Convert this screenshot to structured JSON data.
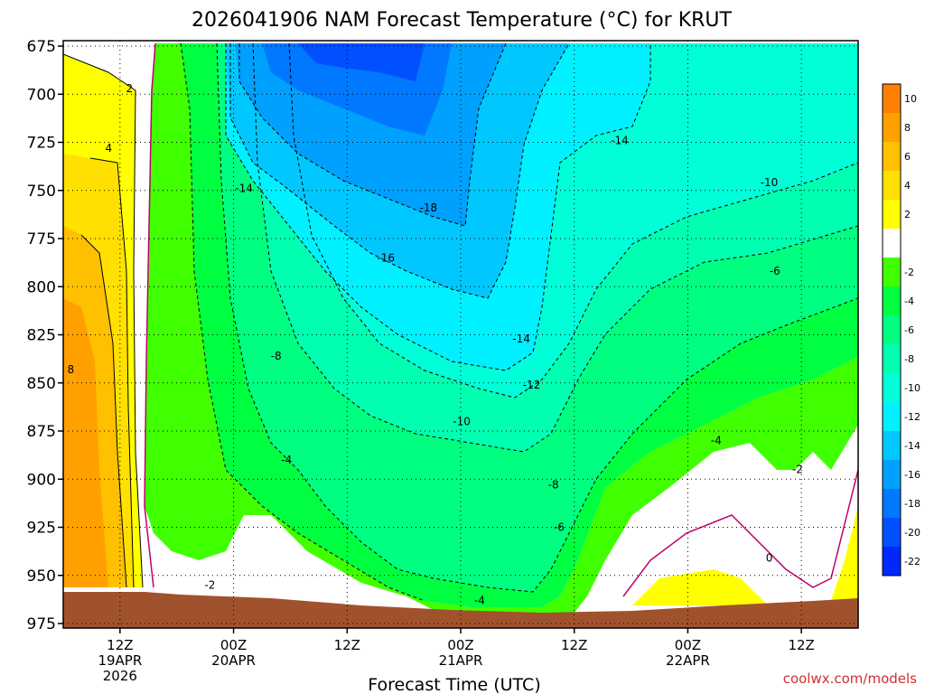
{
  "chart_data": {
    "type": "heatmap",
    "title": "2026041906 NAM Forecast Temperature (°C) for KRUT",
    "xlabel": "Forecast Time (UTC)",
    "ylabel": "",
    "credit": "coolwx.com/models",
    "y_ticks": [
      "675",
      "700",
      "725",
      "750",
      "775",
      "800",
      "825",
      "850",
      "875",
      "900",
      "925",
      "950",
      "975"
    ],
    "ylim": [
      975,
      675
    ],
    "x_ticks": [
      {
        "h": 6,
        "lines": [
          "12Z",
          "19APR",
          "2026"
        ]
      },
      {
        "h": 18,
        "lines": [
          "00Z",
          "20APR"
        ]
      },
      {
        "h": 30,
        "lines": [
          "12Z"
        ]
      },
      {
        "h": 42,
        "lines": [
          "00Z",
          "21APR"
        ]
      },
      {
        "h": 54,
        "lines": [
          "12Z"
        ]
      },
      {
        "h": 66,
        "lines": [
          "00Z",
          "22APR"
        ]
      },
      {
        "h": 78,
        "lines": [
          "12Z"
        ]
      }
    ],
    "xlim": [
      0,
      84
    ],
    "colorbar": {
      "labels": [
        "10",
        "8",
        "6",
        "4",
        "2",
        "",
        "-2",
        "-4",
        "-6",
        "-8",
        "-10",
        "-12",
        "-14",
        "-16",
        "-18",
        "-20",
        "-22"
      ],
      "colors": [
        "#ff8000",
        "#ffa000",
        "#ffc000",
        "#ffe000",
        "#ffff00",
        "#ffffff",
        "#40ff00",
        "#00ff40",
        "#00ff80",
        "#00ffb0",
        "#00ffd8",
        "#00f0ff",
        "#00c8ff",
        "#00a0ff",
        "#0078ff",
        "#0050ff",
        "#0028ff"
      ]
    },
    "contour_labels": [
      {
        "h": 7.0,
        "p": 697,
        "text": "2"
      },
      {
        "h": 4.8,
        "p": 728,
        "text": "4"
      },
      {
        "h": 0.8,
        "p": 843,
        "text": "8"
      },
      {
        "h": 19.1,
        "p": 749,
        "text": "-14"
      },
      {
        "h": 38.6,
        "p": 759,
        "text": "-18"
      },
      {
        "h": 34.1,
        "p": 785,
        "text": "-16"
      },
      {
        "h": 22.5,
        "p": 836,
        "text": "-8"
      },
      {
        "h": 48.4,
        "p": 827,
        "text": "-14"
      },
      {
        "h": 49.5,
        "p": 851,
        "text": "-12"
      },
      {
        "h": 42.1,
        "p": 870,
        "text": "-10"
      },
      {
        "h": 23.6,
        "p": 890,
        "text": "-4"
      },
      {
        "h": 51.8,
        "p": 903,
        "text": "-8"
      },
      {
        "h": 52.4,
        "p": 925,
        "text": "-6"
      },
      {
        "h": 44.0,
        "p": 963,
        "text": "-4"
      },
      {
        "h": 15.5,
        "p": 955,
        "text": "-2"
      },
      {
        "h": 58.8,
        "p": 724,
        "text": "-14"
      },
      {
        "h": 74.6,
        "p": 746,
        "text": "-10"
      },
      {
        "h": 75.2,
        "p": 792,
        "text": "-6"
      },
      {
        "h": 69.0,
        "p": 880,
        "text": "-4"
      },
      {
        "h": 77.6,
        "p": 895,
        "text": "-2"
      },
      {
        "h": 74.6,
        "p": 941,
        "text": "0"
      }
    ]
  }
}
